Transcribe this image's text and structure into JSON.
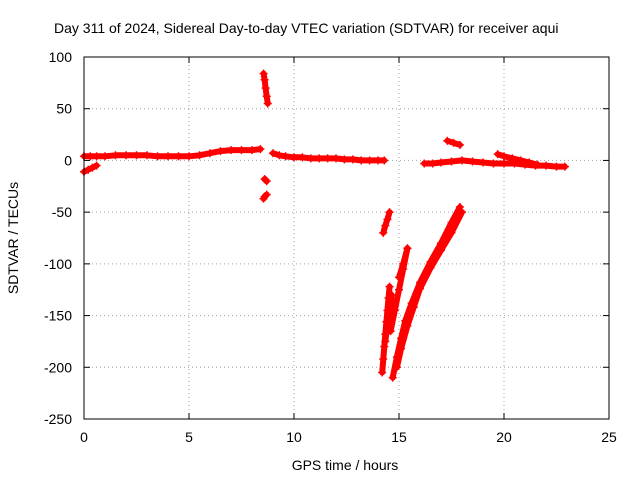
{
  "chart_data": {
    "type": "scatter",
    "title": "Day 311 of 2024, Sidereal Day-to-day VTEC variation (SDTVAR) for receiver aqui",
    "xlabel": "GPS time / hours",
    "ylabel": "SDTVAR / TECUs",
    "xlim": [
      0,
      25
    ],
    "ylim": [
      -250,
      100
    ],
    "xticks": [
      0,
      5,
      10,
      15,
      20,
      25
    ],
    "yticks": [
      -250,
      -200,
      -150,
      -100,
      -50,
      0,
      50,
      100
    ],
    "xtick_labels": [
      "0",
      "5",
      "10",
      "15",
      "20",
      "25"
    ],
    "ytick_labels": [
      "-250",
      "-200",
      "-150",
      "-100",
      "-50",
      "0",
      "50",
      "100"
    ],
    "grid": true,
    "legend": false,
    "colors": {
      "points": "#ff0000",
      "grid": "#a0a0a0",
      "axis": "#000000"
    },
    "series": [
      {
        "x": [
          0.0,
          0.3,
          0.6,
          1.0,
          1.5,
          2.0,
          2.5,
          3.0,
          3.5,
          4.0,
          4.5,
          5.0,
          5.5,
          6.0,
          6.5,
          7.0,
          7.5,
          8.0,
          8.4
        ],
        "y": [
          4,
          4,
          4,
          4,
          5,
          5,
          5,
          5,
          4,
          4,
          4,
          4,
          5,
          7,
          9,
          10,
          10,
          10,
          11
        ]
      },
      {
        "x": [
          0.0,
          0.2,
          0.4,
          0.6
        ],
        "y": [
          -11,
          -9,
          -7,
          -5
        ]
      },
      {
        "x": [
          8.55,
          8.6,
          8.65,
          8.7,
          8.75
        ],
        "y": [
          84,
          78,
          70,
          62,
          55
        ]
      },
      {
        "x": [
          8.6,
          8.65,
          8.7
        ],
        "y": [
          -18,
          -19,
          -20
        ]
      },
      {
        "x": [
          8.55,
          8.6,
          8.7
        ],
        "y": [
          -37,
          -35,
          -33
        ]
      },
      {
        "x": [
          9.0,
          9.3,
          9.6,
          10.0,
          10.4,
          10.8,
          11.2,
          11.6,
          12.0,
          12.4,
          12.8,
          13.2,
          13.6,
          14.0,
          14.3
        ],
        "y": [
          7,
          5,
          4,
          3,
          3,
          2,
          2,
          2,
          2,
          1,
          1,
          0,
          0,
          0,
          0
        ]
      },
      {
        "x": [
          14.25,
          14.35,
          14.45,
          14.55
        ],
        "y": [
          -70,
          -63,
          -57,
          -50
        ]
      },
      {
        "x": [
          14.2,
          14.25,
          14.3,
          14.35,
          14.4,
          14.45,
          14.5,
          14.55
        ],
        "y": [
          -205,
          -192,
          -180,
          -168,
          -156,
          -145,
          -133,
          -122
        ]
      },
      {
        "x": [
          14.35,
          14.45,
          14.55,
          14.65
        ],
        "y": [
          -175,
          -160,
          -145,
          -130
        ]
      },
      {
        "x": [
          14.7,
          14.9,
          15.1,
          15.3,
          15.6,
          16.0,
          16.5,
          17.0,
          17.5,
          17.9
        ],
        "y": [
          -210,
          -190,
          -172,
          -155,
          -138,
          -118,
          -98,
          -80,
          -60,
          -45
        ]
      },
      {
        "x": [
          14.9,
          15.1,
          15.4,
          15.7,
          16.0,
          16.5,
          17.0,
          17.5,
          18.0
        ],
        "y": [
          -200,
          -182,
          -160,
          -142,
          -124,
          -104,
          -87,
          -70,
          -50
        ]
      },
      {
        "x": [
          14.6,
          14.8,
          15.0,
          15.2,
          15.4
        ],
        "y": [
          -165,
          -145,
          -125,
          -105,
          -85
        ]
      },
      {
        "x": [
          15.0,
          15.2,
          15.4
        ],
        "y": [
          -113,
          -100,
          -85
        ]
      },
      {
        "x": [
          17.3,
          17.6,
          17.9
        ],
        "y": [
          19,
          17,
          15
        ]
      },
      {
        "x": [
          16.2,
          16.6,
          17.0,
          17.5,
          18.0,
          18.5,
          19.0,
          19.5,
          20.0,
          20.5,
          21.0,
          21.5,
          22.0,
          22.5,
          22.9
        ],
        "y": [
          -3,
          -3,
          -2,
          -1,
          0,
          -1,
          -2,
          -3,
          -3,
          -3,
          -4,
          -5,
          -5,
          -6,
          -6
        ]
      },
      {
        "x": [
          19.7,
          20.0,
          20.4,
          20.8,
          21.2,
          21.6
        ],
        "y": [
          6,
          4,
          2,
          0,
          -2,
          -4
        ]
      }
    ]
  }
}
